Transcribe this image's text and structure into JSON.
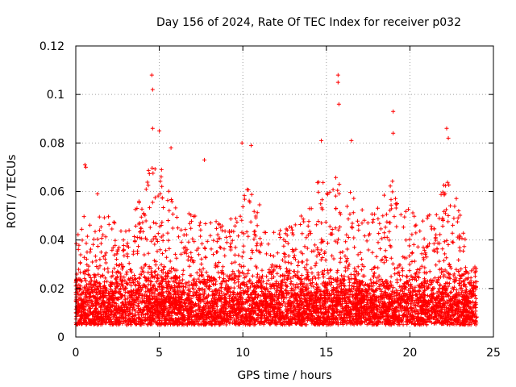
{
  "chart_data": {
    "type": "scatter",
    "title": "Day 156 of 2024, Rate Of TEC Index for receiver p032",
    "xlabel": "GPS time / hours",
    "ylabel": "ROTI / TECUs",
    "xlim": [
      0,
      25
    ],
    "ylim": [
      0,
      0.12
    ],
    "xticks": [
      0,
      5,
      10,
      15,
      20,
      25
    ],
    "xtick_labels": [
      "0",
      "5",
      "10",
      "15",
      "20",
      "25"
    ],
    "yticks": [
      0,
      0.02,
      0.04,
      0.06,
      0.08,
      0.1,
      0.12
    ],
    "ytick_labels": [
      "0",
      "0.02",
      "0.04",
      "0.06",
      "0.08",
      "0.1",
      "0.12"
    ],
    "grid": true,
    "marker": "+",
    "color": "#ff0000",
    "series": [
      {
        "name": "ROTI",
        "x_range_hours": [
          0.0,
          24.0
        ],
        "typical_band": [
          0.005,
          0.03
        ],
        "notable_peaks": [
          {
            "x": 0.55,
            "y": 0.071
          },
          {
            "x": 0.6,
            "y": 0.07
          },
          {
            "x": 1.3,
            "y": 0.059
          },
          {
            "x": 4.55,
            "y": 0.108
          },
          {
            "x": 4.6,
            "y": 0.102
          },
          {
            "x": 4.6,
            "y": 0.086
          },
          {
            "x": 5.0,
            "y": 0.085
          },
          {
            "x": 5.7,
            "y": 0.078
          },
          {
            "x": 7.7,
            "y": 0.073
          },
          {
            "x": 9.95,
            "y": 0.08
          },
          {
            "x": 10.5,
            "y": 0.079
          },
          {
            "x": 14.7,
            "y": 0.081
          },
          {
            "x": 15.7,
            "y": 0.108
          },
          {
            "x": 15.7,
            "y": 0.105
          },
          {
            "x": 15.75,
            "y": 0.096
          },
          {
            "x": 16.5,
            "y": 0.081
          },
          {
            "x": 19.0,
            "y": 0.093
          },
          {
            "x": 19.0,
            "y": 0.084
          },
          {
            "x": 22.2,
            "y": 0.086
          },
          {
            "x": 22.3,
            "y": 0.082
          }
        ]
      }
    ]
  }
}
